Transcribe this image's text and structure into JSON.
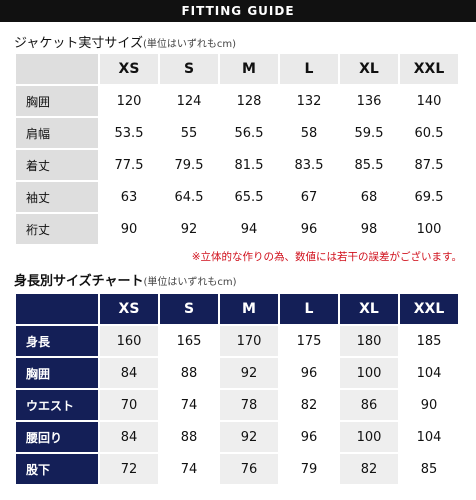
{
  "header": {
    "title": "FITTING GUIDE"
  },
  "jacket": {
    "title": "ジャケット実寸サイズ",
    "unit": "(単位はいずれもcm)",
    "columns": [
      "XS",
      "S",
      "M",
      "L",
      "XL",
      "XXL"
    ],
    "rows": [
      {
        "label": "胸囲",
        "values": [
          "120",
          "124",
          "128",
          "132",
          "136",
          "140"
        ]
      },
      {
        "label": "肩幅",
        "values": [
          "53.5",
          "55",
          "56.5",
          "58",
          "59.5",
          "60.5"
        ]
      },
      {
        "label": "着丈",
        "values": [
          "77.5",
          "79.5",
          "81.5",
          "83.5",
          "85.5",
          "87.5"
        ]
      },
      {
        "label": "袖丈",
        "values": [
          "63",
          "64.5",
          "65.5",
          "67",
          "68",
          "69.5"
        ]
      },
      {
        "label": "裄丈",
        "values": [
          "90",
          "92",
          "94",
          "96",
          "98",
          "100"
        ]
      }
    ],
    "note": "※立体的な作りの為、数値には若干の誤差がございます。"
  },
  "body_size": {
    "title": "身長別サイズチャート",
    "unit": "(単位はいずれもcm)",
    "columns": [
      "XS",
      "S",
      "M",
      "L",
      "XL",
      "XXL"
    ],
    "rows": [
      {
        "label": "身長",
        "values": [
          "160",
          "165",
          "170",
          "175",
          "180",
          "185"
        ]
      },
      {
        "label": "胸囲",
        "values": [
          "84",
          "88",
          "92",
          "96",
          "100",
          "104"
        ]
      },
      {
        "label": "ウエスト",
        "values": [
          "70",
          "74",
          "78",
          "82",
          "86",
          "90"
        ]
      },
      {
        "label": "腰回り",
        "values": [
          "84",
          "88",
          "92",
          "96",
          "100",
          "104"
        ]
      },
      {
        "label": "股下",
        "values": [
          "72",
          "74",
          "76",
          "79",
          "82",
          "85"
        ]
      }
    ]
  }
}
